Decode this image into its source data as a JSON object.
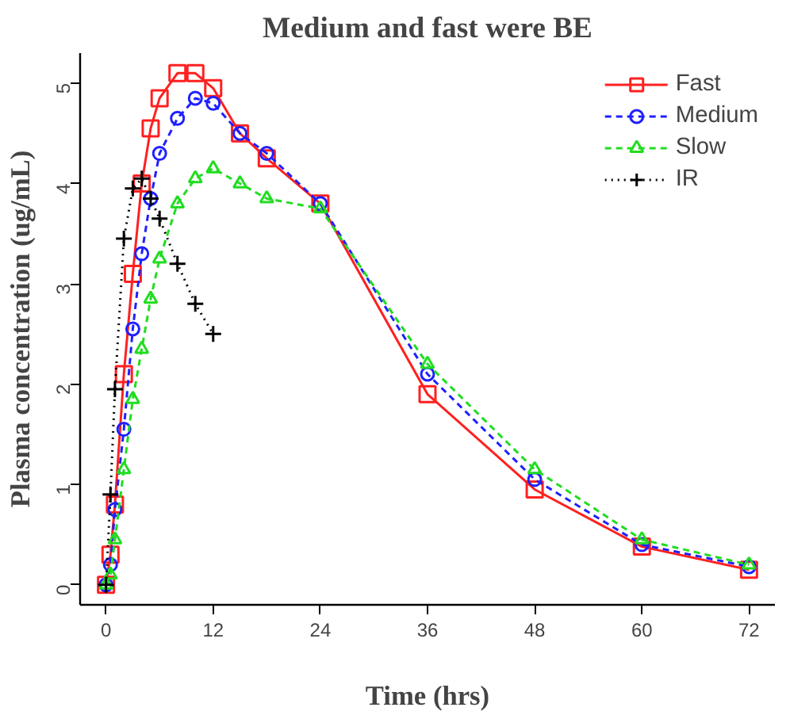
{
  "chart_data": {
    "type": "line",
    "title": "Medium and fast were BE",
    "xlabel": "Time (hrs)",
    "ylabel": "Plasma concentration (ug/mL)",
    "xlim": [
      -2.9,
      74.9
    ],
    "ylim": [
      -0.2,
      5.3
    ],
    "xticks": [
      0,
      12,
      24,
      36,
      48,
      60,
      72
    ],
    "yticks": [
      0,
      1,
      2,
      3,
      4,
      5
    ],
    "grid": false,
    "legend": "top right",
    "series": [
      {
        "name": "Fast",
        "color": "#ff2020",
        "marker": "square",
        "line_style": "solid",
        "x": [
          0,
          0.5,
          1,
          2,
          3,
          4,
          5,
          6,
          8,
          10,
          12,
          15,
          18,
          24,
          36,
          48,
          60,
          72
        ],
        "values": [
          0,
          0.3,
          0.8,
          2.1,
          3.1,
          4.0,
          4.55,
          4.85,
          5.1,
          5.1,
          4.95,
          4.5,
          4.25,
          3.8,
          1.9,
          0.95,
          0.38,
          0.15
        ]
      },
      {
        "name": "Medium",
        "color": "#2020ff",
        "marker": "circle",
        "line_style": "dashed",
        "x": [
          0,
          0.5,
          1,
          2,
          3,
          4,
          5,
          6,
          8,
          10,
          12,
          15,
          18,
          24,
          36,
          48,
          60,
          72
        ],
        "values": [
          0,
          0.2,
          0.75,
          1.55,
          2.55,
          3.3,
          3.85,
          4.3,
          4.65,
          4.85,
          4.8,
          4.5,
          4.3,
          3.8,
          2.1,
          1.05,
          0.4,
          0.18
        ]
      },
      {
        "name": "Slow",
        "color": "#20dd20",
        "marker": "triangle",
        "line_style": "dashed",
        "x": [
          0,
          0.5,
          1,
          2,
          3,
          4,
          5,
          6,
          8,
          10,
          12,
          15,
          18,
          24,
          36,
          48,
          60,
          72
        ],
        "values": [
          0,
          0.1,
          0.45,
          1.15,
          1.85,
          2.35,
          2.85,
          3.25,
          3.8,
          4.05,
          4.15,
          4.0,
          3.85,
          3.75,
          2.2,
          1.15,
          0.45,
          0.2
        ]
      },
      {
        "name": "IR",
        "color": "#000000",
        "marker": "cross",
        "line_style": "dotted",
        "x": [
          0,
          0.5,
          1,
          2,
          3,
          4,
          5,
          6,
          8,
          10,
          12
        ],
        "values": [
          0,
          0.9,
          1.95,
          3.45,
          3.95,
          4.05,
          3.85,
          3.65,
          3.2,
          2.8,
          2.5
        ]
      }
    ]
  }
}
